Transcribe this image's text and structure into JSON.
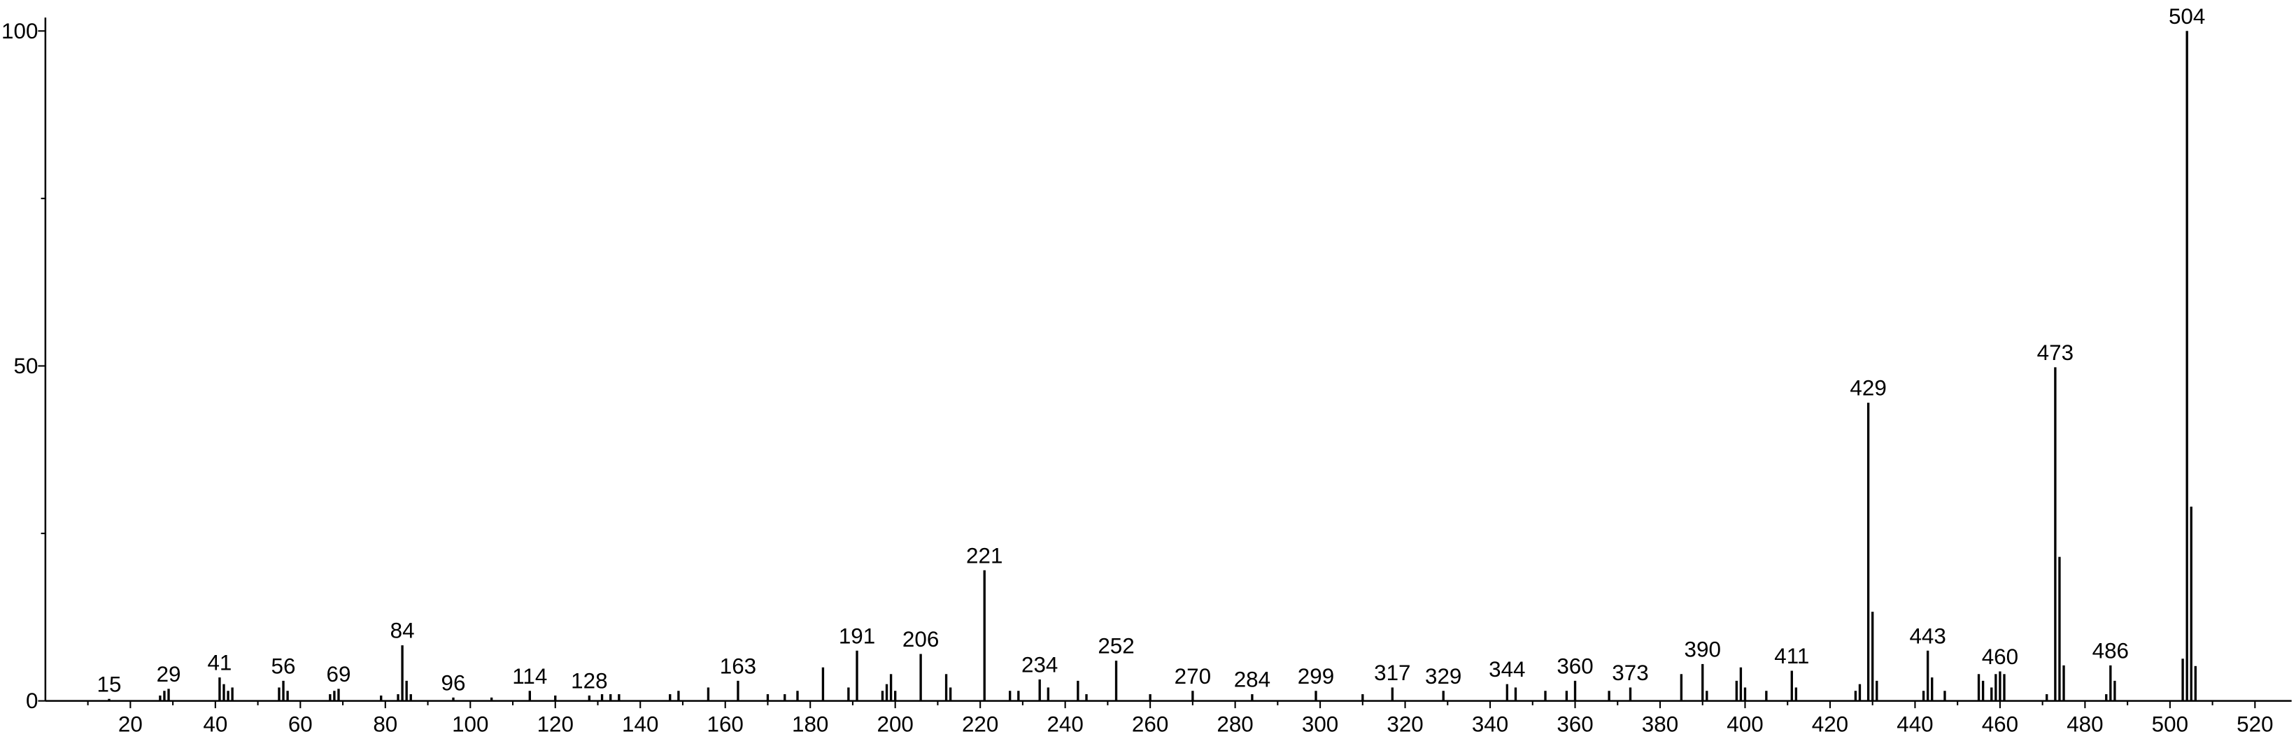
{
  "chart_data": {
    "type": "stem",
    "color": "#000000",
    "x": [
      15,
      27,
      28,
      29,
      41,
      42,
      43,
      44,
      55,
      56,
      57,
      67,
      68,
      69,
      79,
      83,
      84,
      85,
      86,
      96,
      105,
      114,
      120,
      128,
      131,
      133,
      135,
      147,
      149,
      156,
      163,
      170,
      174,
      177,
      183,
      189,
      191,
      197,
      198,
      199,
      200,
      206,
      212,
      213,
      221,
      227,
      229,
      234,
      236,
      243,
      245,
      252,
      260,
      270,
      284,
      299,
      310,
      317,
      329,
      344,
      346,
      353,
      358,
      360,
      368,
      373,
      385,
      390,
      391,
      398,
      399,
      400,
      405,
      411,
      412,
      426,
      427,
      429,
      430,
      431,
      442,
      443,
      444,
      447,
      455,
      456,
      458,
      459,
      460,
      461,
      471,
      473,
      474,
      475,
      485,
      486,
      487,
      503,
      504,
      505,
      506
    ],
    "values": [
      0.3,
      0.8,
      1.5,
      1.8,
      3.5,
      2.5,
      1.5,
      2,
      2,
      3,
      1.5,
      1,
      1.5,
      1.8,
      0.8,
      1,
      8.3,
      3,
      1,
      0.5,
      0.5,
      1.5,
      0.8,
      0.8,
      1,
      1,
      1,
      1,
      1.5,
      2,
      3,
      1,
      1,
      1.5,
      5,
      2,
      7.5,
      1.5,
      2.5,
      4,
      1.5,
      7,
      4,
      2,
      19.5,
      1.5,
      1.5,
      3.2,
      2,
      3,
      1,
      6,
      1,
      1.5,
      1,
      1.5,
      1,
      2,
      1.5,
      2.5,
      2,
      1.5,
      1.5,
      3,
      1.5,
      2,
      4,
      5.5,
      1.5,
      3,
      5,
      2,
      1.5,
      4.5,
      2,
      1.5,
      2.5,
      44.5,
      13.3,
      3,
      1.5,
      7.5,
      3.5,
      1.5,
      4,
      3,
      2,
      4,
      4.4,
      4,
      1,
      49.8,
      21.5,
      5.3,
      1,
      5.3,
      3,
      6.3,
      100,
      29,
      5.2
    ],
    "peak_labels": [
      "15",
      null,
      null,
      "29",
      "41",
      null,
      null,
      null,
      null,
      "56",
      null,
      null,
      null,
      "69",
      null,
      null,
      "84",
      null,
      null,
      "96",
      null,
      "114",
      null,
      "128",
      null,
      null,
      null,
      null,
      null,
      null,
      "163",
      null,
      null,
      null,
      null,
      null,
      "191",
      null,
      null,
      null,
      null,
      "206",
      null,
      null,
      "221",
      null,
      null,
      "234",
      null,
      null,
      null,
      "252",
      null,
      "270",
      "284",
      "299",
      null,
      "317",
      "329",
      "344",
      null,
      null,
      null,
      "360",
      null,
      "373",
      null,
      "390",
      null,
      null,
      null,
      null,
      null,
      "411",
      null,
      null,
      null,
      "429",
      null,
      null,
      null,
      "443",
      null,
      null,
      null,
      null,
      null,
      null,
      "460",
      null,
      null,
      "473",
      null,
      null,
      null,
      "486",
      null,
      null,
      "504",
      null,
      null
    ],
    "xlim": [
      0,
      530
    ],
    "ylim": [
      0,
      102
    ],
    "xticks": [
      20,
      40,
      60,
      80,
      100,
      120,
      140,
      160,
      180,
      200,
      220,
      240,
      260,
      280,
      300,
      320,
      340,
      360,
      380,
      400,
      420,
      440,
      460,
      480,
      500,
      520
    ],
    "xminor": [
      10,
      30,
      50,
      70,
      90,
      110,
      130,
      150,
      170,
      190,
      210,
      230,
      250,
      270,
      290,
      310,
      330,
      350,
      370,
      390,
      410,
      430,
      450,
      470,
      490,
      510
    ],
    "yticks": [
      0,
      50,
      100
    ],
    "yminor": [
      25,
      75
    ]
  }
}
